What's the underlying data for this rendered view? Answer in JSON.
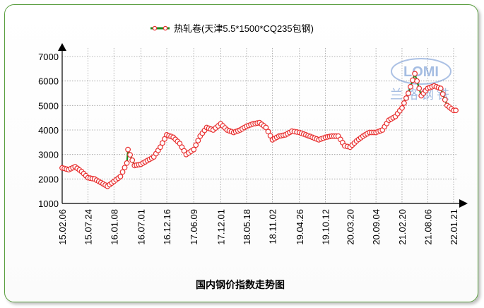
{
  "chart_data": {
    "type": "line",
    "title": "国内钢价指数走势图",
    "xlabel": "",
    "ylabel": "",
    "ylim": [
      1000,
      7000
    ],
    "yticks": [
      1000,
      2000,
      3000,
      4000,
      5000,
      6000,
      7000
    ],
    "xticks": [
      "15.02.06",
      "15.07.24",
      "16.01.08",
      "16.07.01",
      "16.12.16",
      "17.06.09",
      "17.12.01",
      "18.05.18",
      "18.11.02",
      "19.04.26",
      "19.10.12",
      "20.03.20",
      "20.09.04",
      "21.02.20",
      "21.08.06",
      "22.01.21"
    ],
    "grid": true,
    "legend": "top-center",
    "watermark": "LOMI 兰格钢铁",
    "series": [
      {
        "name": "热轧卷(天津5.5*1500*CQ235包钢)",
        "line_color": "#1a8a1a",
        "marker_color": "#e83030",
        "x": [
          "15.02.06",
          "15.03.20",
          "15.05.01",
          "15.06.12",
          "15.07.24",
          "15.09.04",
          "15.10.16",
          "15.11.27",
          "16.01.08",
          "16.02.19",
          "16.04.01",
          "16.04.08",
          "16.05.20",
          "16.07.01",
          "16.08.12",
          "16.09.23",
          "16.11.04",
          "16.12.16",
          "17.01.27",
          "17.03.10",
          "17.04.21",
          "17.06.09",
          "17.07.21",
          "17.09.01",
          "17.10.13",
          "17.12.01",
          "18.01.12",
          "18.02.23",
          "18.04.06",
          "18.05.18",
          "18.06.29",
          "18.08.10",
          "18.09.21",
          "18.11.02",
          "18.12.14",
          "19.01.25",
          "19.03.08",
          "19.04.26",
          "19.06.07",
          "19.07.19",
          "19.08.30",
          "19.10.12",
          "19.11.22",
          "20.01.03",
          "20.02.14",
          "20.03.20",
          "20.05.01",
          "20.06.12",
          "20.07.24",
          "20.09.04",
          "20.10.16",
          "20.11.27",
          "21.01.08",
          "21.02.20",
          "21.04.02",
          "21.05.14",
          "21.06.25",
          "21.08.06",
          "21.09.17",
          "21.10.29",
          "21.12.10",
          "22.01.21",
          "22.02.04"
        ],
        "values": [
          2450,
          2380,
          2500,
          2300,
          2050,
          2000,
          1850,
          1700,
          1900,
          2100,
          2650,
          3200,
          2550,
          2600,
          2750,
          2900,
          3300,
          3800,
          3700,
          3450,
          3000,
          3200,
          3750,
          4100,
          4000,
          4250,
          4000,
          3900,
          4000,
          4150,
          4250,
          4300,
          4100,
          3600,
          3750,
          3800,
          3950,
          3900,
          3800,
          3700,
          3600,
          3700,
          3750,
          3750,
          3350,
          3300,
          3550,
          3750,
          3900,
          3900,
          4000,
          4400,
          4550,
          4900,
          5500,
          6300,
          5400,
          5700,
          5800,
          5700,
          5000,
          4800,
          4800
        ]
      }
    ]
  }
}
